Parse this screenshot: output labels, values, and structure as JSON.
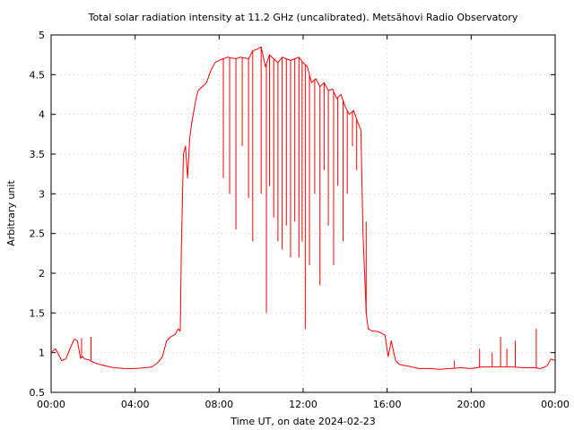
{
  "chart_data": {
    "type": "line",
    "title": "Total solar radiation intensity at 11.2 GHz (uncalibrated). Metsähovi Radio Observatory",
    "xlabel": "Time UT, on date 2024-02-23",
    "ylabel": "Arbitrary unit",
    "xlim": [
      0,
      24
    ],
    "ylim": [
      0.5,
      5
    ],
    "x_ticks": [
      {
        "value": 0,
        "label": "00:00"
      },
      {
        "value": 4,
        "label": "04:00"
      },
      {
        "value": 8,
        "label": "08:00"
      },
      {
        "value": 12,
        "label": "12:00"
      },
      {
        "value": 16,
        "label": "16:00"
      },
      {
        "value": 20,
        "label": "20:00"
      },
      {
        "value": 24,
        "label": "00:00"
      }
    ],
    "y_ticks": [
      {
        "value": 0.5,
        "label": "0.5"
      },
      {
        "value": 1,
        "label": "1"
      },
      {
        "value": 1.5,
        "label": "1.5"
      },
      {
        "value": 2,
        "label": "2"
      },
      {
        "value": 2.5,
        "label": "2.5"
      },
      {
        "value": 3,
        "label": "3"
      },
      {
        "value": 3.5,
        "label": "3.5"
      },
      {
        "value": 4,
        "label": "4"
      },
      {
        "value": 4.5,
        "label": "4.5"
      },
      {
        "value": 5,
        "label": "5"
      }
    ],
    "grid": true,
    "line_color": "#ff0000",
    "series": [
      {
        "x": [
          0.0,
          0.2,
          0.35,
          0.5,
          0.7,
          0.9,
          1.1,
          1.25,
          1.4,
          1.5,
          1.6,
          1.8,
          2.0,
          2.2,
          2.5,
          2.8,
          3.0,
          3.5,
          4.0,
          4.5,
          4.8,
          5.0,
          5.1,
          5.3,
          5.5,
          5.7,
          5.9,
          6.05,
          6.15,
          6.2,
          6.3,
          6.4,
          6.5,
          6.6,
          6.7,
          6.9,
          7.0,
          7.2,
          7.4,
          7.6,
          7.8,
          8.0,
          8.2,
          8.4,
          8.6,
          8.8,
          9.0,
          9.2,
          9.4,
          9.6,
          9.8,
          10.0,
          10.2,
          10.4,
          10.6,
          10.8,
          11.0,
          11.2,
          11.4,
          11.6,
          11.8,
          12.0,
          12.2,
          12.4,
          12.6,
          12.8,
          13.0,
          13.2,
          13.4,
          13.6,
          13.8,
          14.0,
          14.2,
          14.4,
          14.6,
          14.75,
          14.85,
          15.0,
          15.1,
          15.3,
          15.5,
          15.7,
          15.9,
          16.05,
          16.2,
          16.4,
          16.6,
          16.8,
          17.0,
          17.5,
          18.0,
          18.5,
          19.0,
          19.5,
          20.0,
          20.5,
          21.0,
          21.5,
          22.0,
          22.5,
          23.0,
          23.3,
          23.6,
          23.8,
          24.0
        ],
        "y": [
          1.0,
          1.05,
          0.98,
          0.9,
          0.92,
          1.05,
          1.17,
          1.15,
          0.93,
          0.95,
          0.92,
          0.91,
          0.88,
          0.86,
          0.84,
          0.82,
          0.81,
          0.8,
          0.8,
          0.81,
          0.82,
          0.86,
          0.88,
          0.95,
          1.15,
          1.2,
          1.23,
          1.3,
          1.27,
          2.3,
          3.5,
          3.6,
          3.2,
          3.7,
          3.9,
          4.2,
          4.3,
          4.35,
          4.4,
          4.55,
          4.65,
          4.68,
          4.7,
          4.72,
          4.71,
          4.7,
          4.72,
          4.71,
          4.7,
          4.8,
          4.82,
          4.85,
          4.6,
          4.75,
          4.7,
          4.65,
          4.72,
          4.7,
          4.68,
          4.7,
          4.72,
          4.65,
          4.6,
          4.4,
          4.45,
          4.35,
          4.4,
          4.3,
          4.32,
          4.2,
          4.25,
          4.1,
          4.0,
          4.05,
          3.9,
          3.8,
          2.5,
          1.5,
          1.3,
          1.27,
          1.27,
          1.25,
          1.22,
          0.95,
          1.15,
          0.9,
          0.85,
          0.84,
          0.83,
          0.8,
          0.8,
          0.79,
          0.8,
          0.81,
          0.8,
          0.82,
          0.82,
          0.82,
          0.82,
          0.81,
          0.81,
          0.8,
          0.83,
          0.92,
          0.9
        ]
      }
    ],
    "spikes": [
      {
        "x": 8.2,
        "y": 3.2
      },
      {
        "x": 8.5,
        "y": 3.0
      },
      {
        "x": 8.8,
        "y": 2.55
      },
      {
        "x": 9.1,
        "y": 3.6
      },
      {
        "x": 9.4,
        "y": 2.95
      },
      {
        "x": 9.6,
        "y": 2.4
      },
      {
        "x": 10.0,
        "y": 3.0
      },
      {
        "x": 10.25,
        "y": 1.5
      },
      {
        "x": 10.4,
        "y": 3.1
      },
      {
        "x": 10.6,
        "y": 2.7
      },
      {
        "x": 10.8,
        "y": 2.4
      },
      {
        "x": 11.0,
        "y": 2.3
      },
      {
        "x": 11.2,
        "y": 2.6
      },
      {
        "x": 11.4,
        "y": 2.2
      },
      {
        "x": 11.6,
        "y": 2.65
      },
      {
        "x": 11.8,
        "y": 2.2
      },
      {
        "x": 11.95,
        "y": 2.4
      },
      {
        "x": 12.1,
        "y": 1.3
      },
      {
        "x": 12.3,
        "y": 2.1
      },
      {
        "x": 12.55,
        "y": 3.0
      },
      {
        "x": 12.8,
        "y": 1.85
      },
      {
        "x": 13.0,
        "y": 3.3
      },
      {
        "x": 13.2,
        "y": 2.6
      },
      {
        "x": 13.45,
        "y": 2.1
      },
      {
        "x": 13.65,
        "y": 3.1
      },
      {
        "x": 13.9,
        "y": 2.4
      },
      {
        "x": 14.1,
        "y": 3.0
      },
      {
        "x": 14.35,
        "y": 3.6
      },
      {
        "x": 14.55,
        "y": 3.3
      },
      {
        "x": 15.0,
        "y": 2.65
      },
      {
        "x": 19.2,
        "y": 0.9
      },
      {
        "x": 20.4,
        "y": 1.05
      },
      {
        "x": 21.0,
        "y": 1.0
      },
      {
        "x": 21.4,
        "y": 1.2
      },
      {
        "x": 21.7,
        "y": 1.05
      },
      {
        "x": 22.1,
        "y": 1.15
      },
      {
        "x": 23.1,
        "y": 1.3
      },
      {
        "x": 1.9,
        "y": 1.2
      },
      {
        "x": 1.45,
        "y": 1.18
      }
    ]
  }
}
